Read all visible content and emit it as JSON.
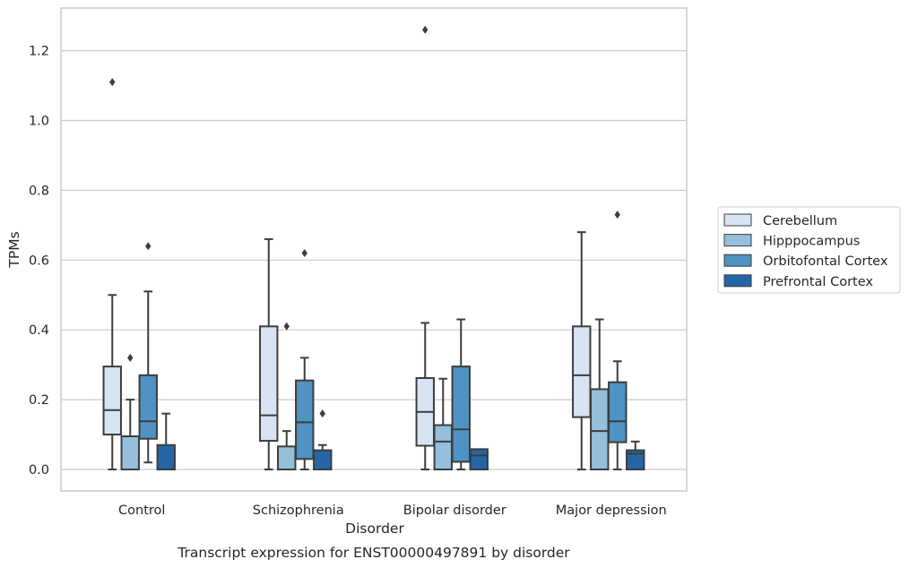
{
  "chart_data": {
    "type": "box",
    "title": "",
    "caption": "Transcript expression for ENST00000497891 by disorder",
    "xlabel": "Disorder",
    "ylabel": "TPMs",
    "ylim": [
      -0.06,
      1.32
    ],
    "yticks": [
      "0.0",
      "0.2",
      "0.4",
      "0.6",
      "0.8",
      "1.0",
      "1.2"
    ],
    "grid": "horizontal",
    "legend_position": "right",
    "categories": [
      "Control",
      "Schizophrenia",
      "Bipolar disorder",
      "Major depression"
    ],
    "series": [
      {
        "name": "Cerebellum",
        "color": "#d6e4f3",
        "boxes": [
          {
            "whislo": 0.0,
            "q1": 0.1,
            "med": 0.17,
            "q3": 0.295,
            "whishi": 0.5,
            "fliers": [
              1.11
            ]
          },
          {
            "whislo": 0.0,
            "q1": 0.082,
            "med": 0.155,
            "q3": 0.41,
            "whishi": 0.66,
            "fliers": []
          },
          {
            "whislo": 0.0,
            "q1": 0.068,
            "med": 0.165,
            "q3": 0.262,
            "whishi": 0.42,
            "fliers": [
              1.26
            ]
          },
          {
            "whislo": 0.0,
            "q1": 0.15,
            "med": 0.27,
            "q3": 0.41,
            "whishi": 0.68,
            "fliers": []
          }
        ]
      },
      {
        "name": "Hipppocampus",
        "color": "#95bfdc",
        "boxes": [
          {
            "whislo": 0.0,
            "q1": 0.0,
            "med": 0.095,
            "q3": 0.095,
            "whishi": 0.2,
            "fliers": [
              0.32
            ]
          },
          {
            "whislo": 0.0,
            "q1": 0.0,
            "med": 0.0,
            "q3": 0.066,
            "whishi": 0.11,
            "fliers": [
              0.41
            ]
          },
          {
            "whislo": 0.0,
            "q1": 0.0,
            "med": 0.08,
            "q3": 0.127,
            "whishi": 0.26,
            "fliers": []
          },
          {
            "whislo": 0.0,
            "q1": 0.0,
            "med": 0.11,
            "q3": 0.23,
            "whishi": 0.43,
            "fliers": []
          }
        ]
      },
      {
        "name": "Orbitofontal Cortex",
        "color": "#4f92c4",
        "boxes": [
          {
            "whislo": 0.02,
            "q1": 0.088,
            "med": 0.138,
            "q3": 0.27,
            "whishi": 0.51,
            "fliers": [
              0.64
            ]
          },
          {
            "whislo": 0.0,
            "q1": 0.03,
            "med": 0.135,
            "q3": 0.255,
            "whishi": 0.32,
            "fliers": [
              0.62
            ]
          },
          {
            "whislo": 0.0,
            "q1": 0.022,
            "med": 0.115,
            "q3": 0.295,
            "whishi": 0.43,
            "fliers": []
          },
          {
            "whislo": 0.0,
            "q1": 0.078,
            "med": 0.138,
            "q3": 0.25,
            "whishi": 0.31,
            "fliers": [
              0.73
            ]
          }
        ]
      },
      {
        "name": "Prefrontal Cortex",
        "color": "#2565a6",
        "boxes": [
          {
            "whislo": 0.0,
            "q1": 0.0,
            "med": 0.0,
            "q3": 0.07,
            "whishi": 0.16,
            "fliers": []
          },
          {
            "whislo": 0.0,
            "q1": 0.0,
            "med": 0.0,
            "q3": 0.055,
            "whishi": 0.07,
            "fliers": [
              0.16
            ]
          },
          {
            "whislo": 0.0,
            "q1": 0.0,
            "med": 0.04,
            "q3": 0.058,
            "whishi": 0.058,
            "fliers": []
          },
          {
            "whislo": 0.0,
            "q1": 0.0,
            "med": 0.045,
            "q3": 0.055,
            "whishi": 0.08,
            "fliers": []
          }
        ]
      }
    ]
  }
}
